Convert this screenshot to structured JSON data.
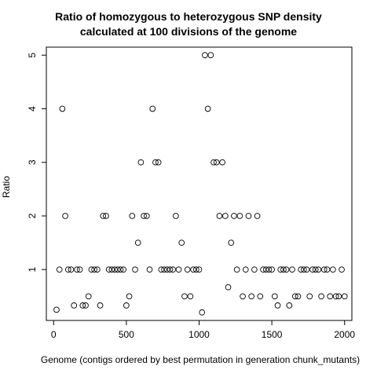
{
  "chart_data": {
    "type": "scatter",
    "title": "Ratio of homozygous to heterozygous SNP density",
    "subtitle": "calculated at 100 divisions of the genome",
    "xlabel": "Genome (contigs ordered by best permutation in generation chunk_mutants)",
    "ylabel": "Ratio",
    "xlim": [
      -50,
      2050
    ],
    "ylim": [
      0.05,
      5.15
    ],
    "xticks": [
      0,
      500,
      1000,
      1500,
      2000
    ],
    "yticks": [
      1,
      2,
      3,
      4,
      5
    ],
    "grid": false,
    "marker": "open-circle",
    "points": [
      [
        20,
        0.25
      ],
      [
        40,
        1
      ],
      [
        60,
        4
      ],
      [
        80,
        2
      ],
      [
        100,
        1
      ],
      [
        120,
        1
      ],
      [
        140,
        0.33
      ],
      [
        160,
        1
      ],
      [
        180,
        1
      ],
      [
        200,
        0.33
      ],
      [
        220,
        0.33
      ],
      [
        240,
        0.5
      ],
      [
        260,
        1
      ],
      [
        280,
        1
      ],
      [
        300,
        1
      ],
      [
        320,
        0.33
      ],
      [
        340,
        2
      ],
      [
        360,
        2
      ],
      [
        380,
        1
      ],
      [
        400,
        1
      ],
      [
        420,
        1
      ],
      [
        440,
        1
      ],
      [
        460,
        1
      ],
      [
        480,
        1
      ],
      [
        500,
        0.33
      ],
      [
        520,
        0.5
      ],
      [
        540,
        2
      ],
      [
        560,
        1
      ],
      [
        580,
        1.5
      ],
      [
        600,
        3
      ],
      [
        620,
        2
      ],
      [
        640,
        2
      ],
      [
        660,
        1
      ],
      [
        680,
        4
      ],
      [
        700,
        3
      ],
      [
        720,
        3
      ],
      [
        740,
        1
      ],
      [
        760,
        1
      ],
      [
        780,
        1
      ],
      [
        800,
        1
      ],
      [
        820,
        1
      ],
      [
        840,
        2
      ],
      [
        860,
        1
      ],
      [
        880,
        1.5
      ],
      [
        900,
        0.5
      ],
      [
        920,
        1
      ],
      [
        940,
        0.5
      ],
      [
        960,
        1
      ],
      [
        980,
        1
      ],
      [
        1000,
        1
      ],
      [
        1020,
        0.2
      ],
      [
        1040,
        5
      ],
      [
        1060,
        4
      ],
      [
        1080,
        5
      ],
      [
        1100,
        3
      ],
      [
        1120,
        3
      ],
      [
        1140,
        2
      ],
      [
        1160,
        3
      ],
      [
        1180,
        2
      ],
      [
        1200,
        0.67
      ],
      [
        1220,
        1.5
      ],
      [
        1240,
        2
      ],
      [
        1260,
        1
      ],
      [
        1280,
        2
      ],
      [
        1300,
        0.5
      ],
      [
        1320,
        1
      ],
      [
        1340,
        2
      ],
      [
        1360,
        0.5
      ],
      [
        1380,
        1
      ],
      [
        1400,
        2
      ],
      [
        1420,
        0.5
      ],
      [
        1440,
        1
      ],
      [
        1460,
        1
      ],
      [
        1480,
        1
      ],
      [
        1500,
        1
      ],
      [
        1520,
        0.5
      ],
      [
        1540,
        0.33
      ],
      [
        1560,
        1
      ],
      [
        1580,
        1
      ],
      [
        1600,
        1
      ],
      [
        1620,
        0.33
      ],
      [
        1640,
        1
      ],
      [
        1660,
        0.5
      ],
      [
        1680,
        0.5
      ],
      [
        1700,
        1
      ],
      [
        1720,
        1
      ],
      [
        1740,
        1
      ],
      [
        1760,
        0.5
      ],
      [
        1780,
        1
      ],
      [
        1800,
        1
      ],
      [
        1820,
        1
      ],
      [
        1840,
        0.5
      ],
      [
        1860,
        1
      ],
      [
        1880,
        1
      ],
      [
        1900,
        0.5
      ],
      [
        1920,
        1
      ],
      [
        1940,
        0.5
      ],
      [
        1960,
        0.5
      ],
      [
        1980,
        1
      ],
      [
        2000,
        0.5
      ]
    ]
  }
}
